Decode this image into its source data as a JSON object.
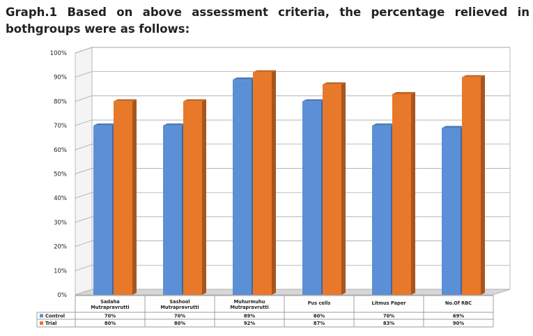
{
  "heading": {
    "line1": "Graph.1 Based on above assessment criteria, the percentage relieved in",
    "line2": "bothgroups were as follows:"
  },
  "chart_data": {
    "type": "bar",
    "style": "3d-clustered-column-with-data-table",
    "categories": [
      [
        "Sadaha",
        "Mutrapravrutti"
      ],
      [
        "Sashool",
        "Mutrapravrutti"
      ],
      [
        "Muhurmuhu",
        "Mutrapravrutti"
      ],
      [
        "Pus cells"
      ],
      [
        "Litmus Paper"
      ],
      [
        "No.Of RBC"
      ]
    ],
    "series": [
      {
        "name": "Control",
        "color": "#5b8fd6",
        "values": [
          70,
          70,
          89,
          80,
          70,
          69
        ],
        "labels": [
          "70%",
          "70%",
          "89%",
          "80%",
          "70%",
          "69%"
        ]
      },
      {
        "name": "Trial",
        "color": "#e8782a",
        "values": [
          80,
          80,
          92,
          87,
          83,
          90
        ],
        "labels": [
          "80%",
          "80%",
          "92%",
          "87%",
          "83%",
          "90%"
        ]
      }
    ],
    "ylim": [
      0,
      100
    ],
    "ytick_labels": [
      "0%",
      "10%",
      "20%",
      "30%",
      "40%",
      "50%",
      "60%",
      "70%",
      "80%",
      "90%",
      "100%"
    ],
    "grid": true,
    "legend": "data-table"
  }
}
